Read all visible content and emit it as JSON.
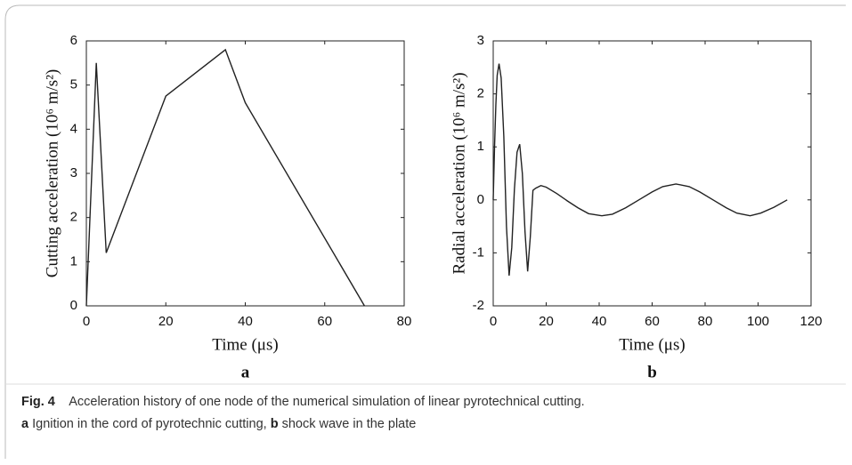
{
  "chart_data": [
    {
      "type": "line",
      "panel_label": "a",
      "xlabel": "Time (μs)",
      "ylabel": "Cutting acceleration (10⁶ m/s²)",
      "x": [
        0,
        2.5,
        5,
        20,
        35,
        40,
        70
      ],
      "series": [
        {
          "color": "#222222",
          "values": [
            0,
            5.5,
            1.2,
            4.75,
            5.8,
            4.6,
            0
          ]
        }
      ],
      "xlim": [
        0,
        80
      ],
      "xticks": [
        0,
        20,
        40,
        60,
        80
      ],
      "ylim": [
        0,
        6
      ],
      "yticks": [
        0,
        1,
        2,
        3,
        4,
        5,
        6
      ],
      "grid": false
    },
    {
      "type": "line",
      "panel_label": "b",
      "xlabel": "Time (μs)",
      "ylabel": "Radial acceleration (10⁶ m/s²)",
      "x": [
        0,
        0.5,
        1,
        1.5,
        2.2,
        3,
        4,
        5,
        6,
        7,
        8,
        9,
        10,
        11,
        12,
        13,
        14,
        15,
        16,
        18,
        20,
        24,
        28,
        32,
        36,
        41,
        45,
        50,
        55,
        60,
        64,
        69,
        74,
        78,
        83,
        88,
        92,
        97,
        101,
        106,
        111
      ],
      "series": [
        {
          "color": "#222222",
          "values": [
            0,
            1.0,
            1.8,
            2.35,
            2.57,
            2.3,
            1.2,
            -0.5,
            -1.43,
            -0.9,
            0.2,
            0.9,
            1.05,
            0.5,
            -0.6,
            -1.35,
            -0.7,
            0.18,
            0.22,
            0.27,
            0.24,
            0.12,
            -0.02,
            -0.15,
            -0.26,
            -0.3,
            -0.27,
            -0.15,
            0,
            0.15,
            0.25,
            0.3,
            0.25,
            0.15,
            0,
            -0.15,
            -0.25,
            -0.3,
            -0.25,
            -0.14,
            0
          ]
        }
      ],
      "xlim": [
        0,
        120
      ],
      "xticks": [
        0,
        20,
        40,
        60,
        80,
        100,
        120
      ],
      "ylim": [
        -2,
        3
      ],
      "yticks": [
        -2,
        -1,
        0,
        1,
        2,
        3
      ],
      "grid": false
    }
  ],
  "caption": {
    "label": "Fig. 4",
    "text": "Acceleration history of one node of the numerical simulation of linear pyrotechnical cutting.",
    "parts": [
      {
        "label": "a",
        "text": "Ignition in the cord of pyrotechnic cutting,"
      },
      {
        "label": "b",
        "text": "shock wave in the plate"
      }
    ]
  }
}
